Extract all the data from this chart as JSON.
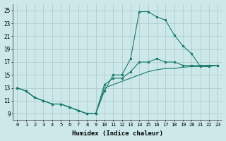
{
  "title": "",
  "xlabel": "Humidex (Indice chaleur)",
  "ylabel": "",
  "xlim": [
    -0.5,
    23.5
  ],
  "ylim": [
    8.0,
    26.0
  ],
  "yticks": [
    9,
    11,
    13,
    15,
    17,
    19,
    21,
    23,
    25
  ],
  "xticks": [
    0,
    1,
    2,
    3,
    4,
    5,
    6,
    7,
    8,
    9,
    10,
    11,
    12,
    13,
    14,
    15,
    16,
    17,
    18,
    19,
    20,
    21,
    22,
    23
  ],
  "bg_color": "#cce8e8",
  "grid_color": "#b0cccc",
  "line_color": "#1a7a6e",
  "line1_x": [
    0,
    1,
    2,
    3,
    4,
    5,
    6,
    7,
    8,
    9,
    10,
    11,
    12,
    13,
    14,
    15,
    16,
    17,
    18,
    19,
    20,
    21,
    22,
    23
  ],
  "line1_y": [
    13.0,
    12.5,
    11.5,
    11.0,
    10.5,
    10.5,
    10.0,
    9.5,
    9.0,
    9.0,
    12.5,
    15.0,
    15.0,
    17.5,
    24.8,
    24.8,
    24.0,
    23.5,
    21.2,
    19.5,
    18.3,
    16.3,
    16.3,
    16.5
  ],
  "line2_x": [
    0,
    1,
    2,
    3,
    4,
    5,
    6,
    7,
    8,
    9,
    10,
    11,
    12,
    13,
    14,
    15,
    16,
    17,
    18,
    19,
    20,
    21,
    22,
    23
  ],
  "line2_y": [
    13.0,
    12.5,
    11.5,
    11.0,
    10.5,
    10.5,
    10.0,
    9.5,
    9.0,
    9.0,
    13.5,
    14.5,
    14.5,
    15.5,
    17.0,
    17.0,
    17.5,
    17.0,
    17.0,
    16.5,
    16.5,
    16.5,
    16.5,
    16.5
  ],
  "line3_x": [
    0,
    1,
    2,
    3,
    4,
    5,
    6,
    7,
    8,
    9,
    10,
    11,
    12,
    13,
    14,
    15,
    16,
    17,
    18,
    19,
    20,
    21,
    22,
    23
  ],
  "line3_y": [
    13.0,
    12.5,
    11.5,
    11.0,
    10.5,
    10.5,
    10.0,
    9.5,
    9.0,
    9.0,
    13.0,
    13.5,
    14.0,
    14.5,
    15.0,
    15.5,
    15.8,
    16.0,
    16.0,
    16.2,
    16.3,
    16.3,
    16.4,
    16.5
  ]
}
